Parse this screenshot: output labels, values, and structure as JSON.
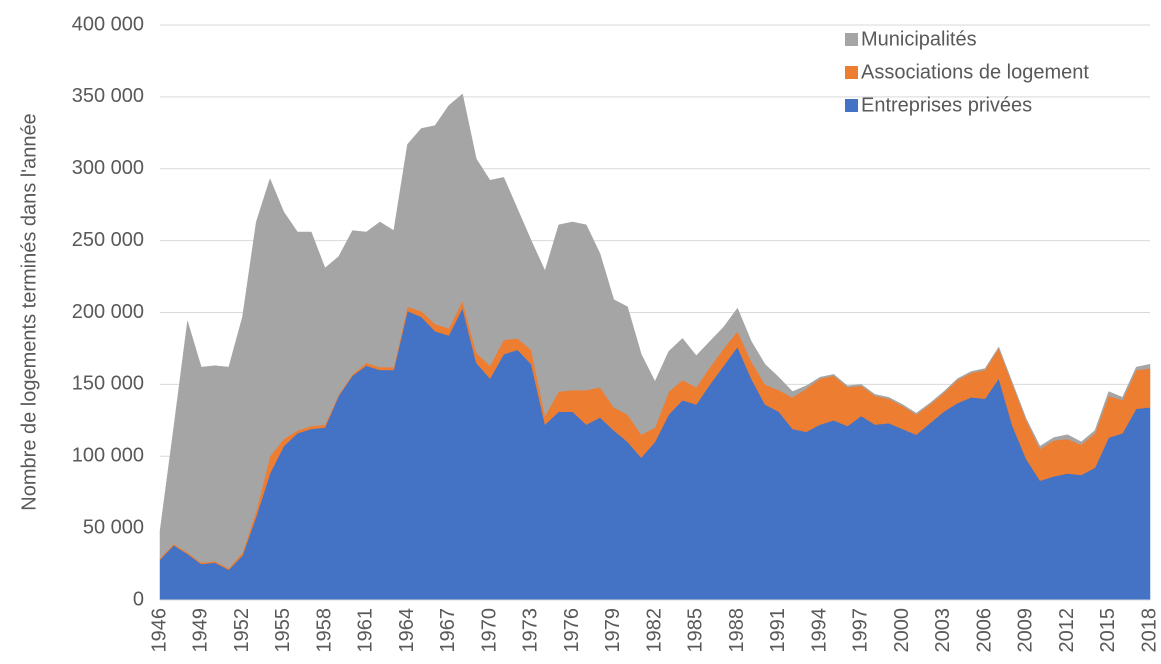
{
  "chart_data": {
    "type": "stacked_area",
    "y_label": "Nombre de logements terminés dans l'année",
    "x": [
      1946,
      1947,
      1948,
      1949,
      1950,
      1951,
      1952,
      1953,
      1954,
      1955,
      1956,
      1957,
      1958,
      1959,
      1960,
      1961,
      1962,
      1963,
      1964,
      1965,
      1966,
      1967,
      1968,
      1969,
      1970,
      1971,
      1972,
      1973,
      1974,
      1975,
      1976,
      1977,
      1978,
      1979,
      1980,
      1981,
      1982,
      1983,
      1984,
      1985,
      1986,
      1987,
      1988,
      1989,
      1990,
      1991,
      1992,
      1993,
      1994,
      1995,
      1996,
      1997,
      1998,
      1999,
      2000,
      2001,
      2002,
      2003,
      2004,
      2005,
      2006,
      2007,
      2008,
      2009,
      2010,
      2011,
      2012,
      2013,
      2014,
      2015,
      2016,
      2017,
      2018
    ],
    "xlim": [
      1946,
      2018
    ],
    "xticks": [
      1946,
      1949,
      1952,
      1955,
      1958,
      1961,
      1964,
      1967,
      1970,
      1973,
      1976,
      1979,
      1982,
      1985,
      1988,
      1991,
      1994,
      1997,
      2000,
      2003,
      2006,
      2009,
      2012,
      2015,
      2018
    ],
    "ylim": [
      0,
      400000
    ],
    "yticks": [
      0,
      {
        "value": 50000,
        "label": "50 000"
      },
      {
        "value": 100000,
        "label": "100 000"
      },
      {
        "value": 150000,
        "label": "150 000"
      },
      {
        "value": 200000,
        "label": "200 000"
      },
      {
        "value": 250000,
        "label": "250 000"
      },
      {
        "value": 300000,
        "label": "300 000"
      },
      {
        "value": 350000,
        "label": "350 000"
      },
      {
        "value": 400000,
        "label": "400 000"
      }
    ],
    "grid": true,
    "legend": "top-right",
    "series": [
      {
        "name": "Entreprises privées",
        "color": "#4472c4",
        "values": [
          28000,
          38000,
          32000,
          25000,
          26000,
          21000,
          31000,
          58000,
          88000,
          107000,
          116000,
          119000,
          120000,
          142000,
          156000,
          163000,
          160000,
          160000,
          201000,
          197000,
          187000,
          184000,
          203000,
          165000,
          154000,
          171000,
          174000,
          164000,
          122000,
          131000,
          131000,
          122000,
          127000,
          118000,
          110000,
          99000,
          110000,
          129000,
          139000,
          136000,
          150000,
          163000,
          176000,
          154000,
          136000,
          131000,
          119000,
          117000,
          122000,
          125000,
          121000,
          128000,
          122000,
          123000,
          119000,
          115000,
          123000,
          131000,
          137000,
          141000,
          140000,
          154000,
          121000,
          98000,
          83000,
          86000,
          88000,
          87000,
          92000,
          113000,
          116000,
          133000,
          134000
        ]
      },
      {
        "name": "Associations de logement",
        "color": "#ed7d31",
        "values": [
          1000,
          1000,
          1000,
          1000,
          1000,
          1000,
          2000,
          4000,
          12000,
          5000,
          2000,
          2000,
          2000,
          1000,
          1000,
          2000,
          2000,
          2000,
          3000,
          4000,
          5000,
          5000,
          5000,
          7000,
          9000,
          10000,
          8000,
          10000,
          6000,
          14000,
          15000,
          24000,
          21000,
          16000,
          19000,
          16000,
          10000,
          16000,
          14000,
          12000,
          12000,
          12000,
          11000,
          12000,
          14000,
          15000,
          22000,
          30000,
          32000,
          31000,
          27000,
          21000,
          20000,
          17000,
          16000,
          14000,
          13000,
          13000,
          16000,
          17000,
          20000,
          21000,
          29000,
          27000,
          22000,
          25000,
          24000,
          21000,
          24000,
          29000,
          23000,
          27000,
          27000
        ]
      },
      {
        "name": "Municipalités",
        "color": "#a5a5a5",
        "values": [
          19000,
          81000,
          161000,
          136000,
          136000,
          140000,
          164000,
          201000,
          193000,
          158000,
          138000,
          135000,
          109000,
          96000,
          100000,
          91000,
          101000,
          95000,
          113000,
          127000,
          138000,
          155000,
          144000,
          135000,
          129000,
          113000,
          90000,
          76000,
          101000,
          116000,
          117000,
          115000,
          93000,
          75000,
          75000,
          56000,
          32000,
          28000,
          29000,
          22000,
          18000,
          15000,
          16000,
          14000,
          14000,
          9000,
          4000,
          2000,
          1000,
          1000,
          1000,
          1000,
          1000,
          1000,
          1000,
          1000,
          1000,
          1000,
          1000,
          1000,
          1000,
          1000,
          1000,
          1000,
          2000,
          2000,
          3000,
          2000,
          2000,
          3000,
          2000,
          2000,
          3000
        ]
      }
    ]
  }
}
